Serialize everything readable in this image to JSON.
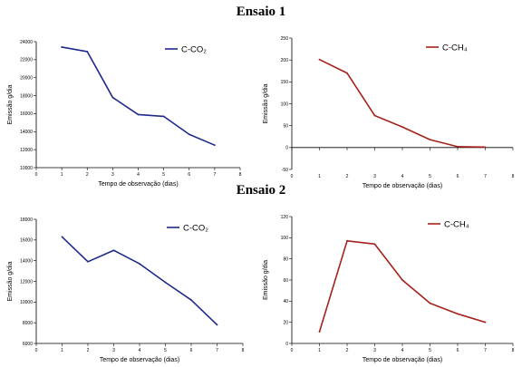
{
  "headings": {
    "first": "Ensaio 1",
    "second": "Ensaio 2"
  },
  "chart_data": [
    {
      "type": "line",
      "xlabel": "Tempo de observação (dias)",
      "ylabel": "Emissão g/dia",
      "xlim": [
        0,
        8
      ],
      "ylim": [
        10000,
        24000
      ],
      "yticks": [
        10000,
        12000,
        14000,
        16000,
        18000,
        20000,
        22000,
        24000
      ],
      "x": [
        1,
        2,
        3,
        4,
        5,
        6,
        7
      ],
      "series": [
        {
          "name": "C-CO₂",
          "color": "#1f2a8a",
          "values": [
            23400,
            22900,
            17800,
            15900,
            15700,
            13700,
            12500
          ]
        }
      ],
      "legend": "top-right"
    },
    {
      "type": "line",
      "xlabel": "Tempo de observação (dias)",
      "ylabel": "Emissão g/dia",
      "xlim": [
        0,
        8
      ],
      "ylim": [
        -50,
        250
      ],
      "yticks": [
        -50,
        0,
        50,
        100,
        150,
        200,
        250
      ],
      "x": [
        1,
        2,
        3,
        4,
        5,
        6,
        7
      ],
      "series": [
        {
          "name": "C-CH₄",
          "color": "#a3221c",
          "values": [
            201,
            170,
            73,
            47,
            18,
            2,
            1
          ]
        }
      ],
      "legend": "top-right"
    },
    {
      "type": "line",
      "xlabel": "Tempo de observação (dias)",
      "ylabel": "Emissão g/dia",
      "xlim": [
        0,
        8
      ],
      "ylim": [
        6000,
        18000
      ],
      "yticks": [
        6000,
        8000,
        10000,
        12000,
        14000,
        16000,
        18000
      ],
      "x": [
        1,
        2,
        3,
        4,
        5,
        6,
        7
      ],
      "series": [
        {
          "name": "C-CO₂",
          "color": "#1f2a8a",
          "values": [
            16300,
            13900,
            15000,
            13700,
            11900,
            10200,
            7800
          ]
        }
      ],
      "legend": "top-right"
    },
    {
      "type": "line",
      "xlabel": "Tempo de observação (dias)",
      "ylabel": "Emissão g/dia",
      "xlim": [
        0,
        8
      ],
      "ylim": [
        0,
        120
      ],
      "yticks": [
        0,
        20,
        40,
        60,
        80,
        100,
        120
      ],
      "x": [
        1,
        2,
        3,
        4,
        5,
        6,
        7
      ],
      "series": [
        {
          "name": "C-CH₄",
          "color": "#a3221c",
          "values": [
            11,
            97,
            94,
            60,
            38,
            28,
            20
          ]
        }
      ],
      "legend": "top-right"
    }
  ]
}
